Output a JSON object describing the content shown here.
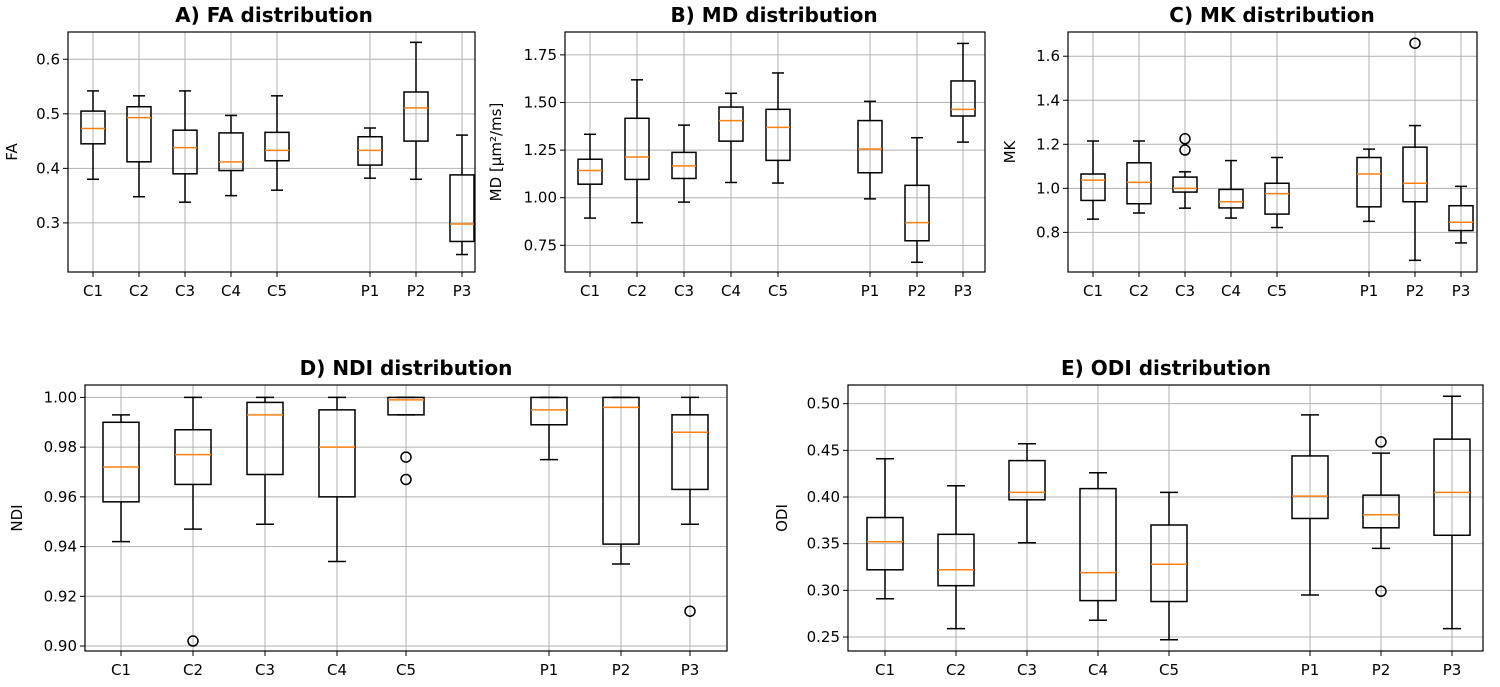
{
  "chart_data": [
    {
      "type": "boxplot",
      "title": "A) FA distribution",
      "ylabel": "FA",
      "categories": [
        "C1",
        "C2",
        "C3",
        "C4",
        "C5",
        "P1",
        "P2",
        "P3"
      ],
      "ylim": [
        0.21,
        0.65
      ],
      "yticks": [
        "0.3",
        "0.4",
        "0.5",
        "0.6"
      ],
      "boxes": [
        {
          "whislo": 0.38,
          "q1": 0.445,
          "med": 0.473,
          "q3": 0.505,
          "whishi": 0.542,
          "fliers": []
        },
        {
          "whislo": 0.348,
          "q1": 0.412,
          "med": 0.493,
          "q3": 0.513,
          "whishi": 0.533,
          "fliers": []
        },
        {
          "whislo": 0.338,
          "q1": 0.39,
          "med": 0.438,
          "q3": 0.47,
          "whishi": 0.542,
          "fliers": []
        },
        {
          "whislo": 0.35,
          "q1": 0.396,
          "med": 0.412,
          "q3": 0.465,
          "whishi": 0.497,
          "fliers": []
        },
        {
          "whislo": 0.36,
          "q1": 0.414,
          "med": 0.433,
          "q3": 0.466,
          "whishi": 0.533,
          "fliers": []
        },
        {
          "whislo": 0.382,
          "q1": 0.406,
          "med": 0.433,
          "q3": 0.458,
          "whishi": 0.474,
          "fliers": []
        },
        {
          "whislo": 0.38,
          "q1": 0.45,
          "med": 0.511,
          "q3": 0.54,
          "whishi": 0.631,
          "fliers": []
        },
        {
          "whislo": 0.242,
          "q1": 0.266,
          "med": 0.298,
          "q3": 0.388,
          "whishi": 0.461,
          "fliers": []
        }
      ]
    },
    {
      "type": "boxplot",
      "title": "B) MD distribution",
      "ylabel": "MD [μm²/ms]",
      "categories": [
        "C1",
        "C2",
        "C3",
        "C4",
        "C5",
        "P1",
        "P2",
        "P3"
      ],
      "ylim": [
        0.61,
        1.87
      ],
      "yticks": [
        "0.75",
        "1.00",
        "1.25",
        "1.50",
        "1.75"
      ],
      "boxes": [
        {
          "whislo": 0.893,
          "q1": 1.071,
          "med": 1.143,
          "q3": 1.202,
          "whishi": 1.333,
          "fliers": []
        },
        {
          "whislo": 0.869,
          "q1": 1.096,
          "med": 1.214,
          "q3": 1.417,
          "whishi": 1.619,
          "fliers": []
        },
        {
          "whislo": 0.977,
          "q1": 1.101,
          "med": 1.167,
          "q3": 1.238,
          "whishi": 1.381,
          "fliers": []
        },
        {
          "whislo": 1.08,
          "q1": 1.297,
          "med": 1.405,
          "q3": 1.476,
          "whishi": 1.548,
          "fliers": []
        },
        {
          "whislo": 1.077,
          "q1": 1.196,
          "med": 1.369,
          "q3": 1.464,
          "whishi": 1.655,
          "fliers": []
        },
        {
          "whislo": 0.994,
          "q1": 1.131,
          "med": 1.256,
          "q3": 1.405,
          "whishi": 1.506,
          "fliers": []
        },
        {
          "whislo": 0.661,
          "q1": 0.774,
          "med": 0.869,
          "q3": 1.065,
          "whishi": 1.315,
          "fliers": []
        },
        {
          "whislo": 1.292,
          "q1": 1.429,
          "med": 1.464,
          "q3": 1.613,
          "whishi": 1.81,
          "fliers": []
        }
      ]
    },
    {
      "type": "boxplot",
      "title": "C) MK distribution",
      "ylabel": "MK",
      "categories": [
        "C1",
        "C2",
        "C3",
        "C4",
        "C5",
        "P1",
        "P2",
        "P3"
      ],
      "ylim": [
        0.62,
        1.71
      ],
      "yticks": [
        "0.8",
        "1.0",
        "1.2",
        "1.4",
        "1.6"
      ],
      "boxes": [
        {
          "whislo": 0.86,
          "q1": 0.945,
          "med": 1.037,
          "q3": 1.065,
          "whishi": 1.215,
          "fliers": []
        },
        {
          "whislo": 0.888,
          "q1": 0.93,
          "med": 1.027,
          "q3": 1.116,
          "whishi": 1.215,
          "fliers": []
        },
        {
          "whislo": 0.91,
          "q1": 0.983,
          "med": 1.0,
          "q3": 1.051,
          "whishi": 1.075,
          "fliers": [
            1.174,
            1.225
          ]
        },
        {
          "whislo": 0.865,
          "q1": 0.911,
          "med": 0.939,
          "q3": 0.995,
          "whishi": 1.126,
          "fliers": []
        },
        {
          "whislo": 0.822,
          "q1": 0.883,
          "med": 0.976,
          "q3": 1.023,
          "whishi": 1.14,
          "fliers": []
        },
        {
          "whislo": 0.85,
          "q1": 0.916,
          "med": 1.065,
          "q3": 1.14,
          "whishi": 1.178,
          "fliers": []
        },
        {
          "whislo": 0.673,
          "q1": 0.939,
          "med": 1.023,
          "q3": 1.187,
          "whishi": 1.285,
          "fliers": [
            1.659
          ]
        },
        {
          "whislo": 0.752,
          "q1": 0.808,
          "med": 0.846,
          "q3": 0.921,
          "whishi": 1.009,
          "fliers": []
        }
      ]
    },
    {
      "type": "boxplot",
      "title": "D) NDI distribution",
      "ylabel": "NDI",
      "categories": [
        "C1",
        "C2",
        "C3",
        "C4",
        "C5",
        "P1",
        "P2",
        "P3"
      ],
      "ylim": [
        0.898,
        1.005
      ],
      "yticks": [
        "0.90",
        "0.92",
        "0.94",
        "0.96",
        "0.98",
        "1.00"
      ],
      "boxes": [
        {
          "whislo": 0.942,
          "q1": 0.958,
          "med": 0.972,
          "q3": 0.99,
          "whishi": 0.993,
          "fliers": []
        },
        {
          "whislo": 0.947,
          "q1": 0.965,
          "med": 0.977,
          "q3": 0.987,
          "whishi": 1.0,
          "fliers": [
            0.902
          ]
        },
        {
          "whislo": 0.949,
          "q1": 0.969,
          "med": 0.993,
          "q3": 0.998,
          "whishi": 1.0,
          "fliers": []
        },
        {
          "whislo": 0.934,
          "q1": 0.96,
          "med": 0.98,
          "q3": 0.995,
          "whishi": 1.0,
          "fliers": []
        },
        {
          "whislo": 0.993,
          "q1": 0.993,
          "med": 0.999,
          "q3": 1.0,
          "whishi": 1.0,
          "fliers": [
            0.976,
            0.967
          ]
        },
        {
          "whislo": 0.975,
          "q1": 0.989,
          "med": 0.995,
          "q3": 1.0,
          "whishi": 1.0,
          "fliers": []
        },
        {
          "whislo": 0.933,
          "q1": 0.941,
          "med": 0.996,
          "q3": 1.0,
          "whishi": 1.0,
          "fliers": []
        },
        {
          "whislo": 0.949,
          "q1": 0.963,
          "med": 0.986,
          "q3": 0.993,
          "whishi": 1.0,
          "fliers": [
            0.914
          ]
        }
      ]
    },
    {
      "type": "boxplot",
      "title": "E) ODI distribution",
      "ylabel": "ODI",
      "categories": [
        "C1",
        "C2",
        "C3",
        "C4",
        "C5",
        "P1",
        "P2",
        "P3"
      ],
      "ylim": [
        0.235,
        0.52
      ],
      "yticks": [
        "0.25",
        "0.30",
        "0.35",
        "0.40",
        "0.45",
        "0.50"
      ],
      "boxes": [
        {
          "whislo": 0.291,
          "q1": 0.322,
          "med": 0.352,
          "q3": 0.378,
          "whishi": 0.441,
          "fliers": []
        },
        {
          "whislo": 0.259,
          "q1": 0.305,
          "med": 0.322,
          "q3": 0.36,
          "whishi": 0.412,
          "fliers": []
        },
        {
          "whislo": 0.351,
          "q1": 0.397,
          "med": 0.405,
          "q3": 0.439,
          "whishi": 0.457,
          "fliers": []
        },
        {
          "whislo": 0.268,
          "q1": 0.289,
          "med": 0.319,
          "q3": 0.409,
          "whishi": 0.426,
          "fliers": []
        },
        {
          "whislo": 0.247,
          "q1": 0.288,
          "med": 0.328,
          "q3": 0.37,
          "whishi": 0.405,
          "fliers": []
        },
        {
          "whislo": 0.295,
          "q1": 0.377,
          "med": 0.401,
          "q3": 0.444,
          "whishi": 0.488,
          "fliers": []
        },
        {
          "whislo": 0.345,
          "q1": 0.367,
          "med": 0.381,
          "q3": 0.402,
          "whishi": 0.447,
          "fliers": [
            0.299,
            0.459
          ]
        },
        {
          "whislo": 0.259,
          "q1": 0.359,
          "med": 0.405,
          "q3": 0.462,
          "whishi": 0.508,
          "fliers": []
        }
      ]
    }
  ],
  "colors": {
    "median": "#ff7f0e",
    "grid": "#b0b0b0",
    "box": "#000000"
  }
}
